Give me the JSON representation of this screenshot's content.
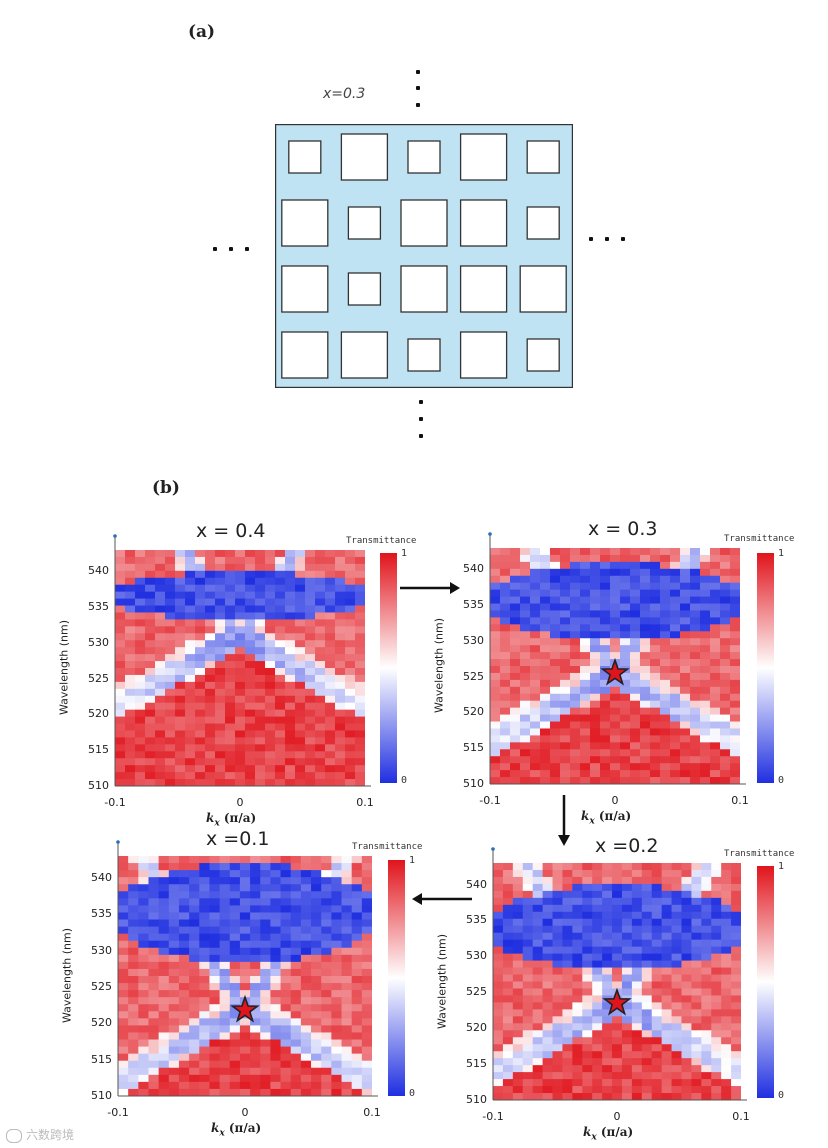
{
  "part_a": {
    "label": "(a)",
    "x_label": "x=0.3",
    "holes": [
      [
        0.3,
        0.7,
        0.3,
        0.7,
        0.3
      ],
      [
        0.7,
        0.3,
        0.7,
        0.7,
        0.3
      ],
      [
        0.7,
        0.3,
        0.7,
        0.7,
        0.7
      ],
      [
        0.7,
        0.7,
        0.3,
        0.7,
        0.3
      ]
    ]
  },
  "part_b": {
    "label": "(b)",
    "colorbar": {
      "title": "Transmittance",
      "max_label": "1",
      "min_label": "0",
      "colors": [
        "#1f2fe0",
        "#ffffff",
        "#e0141c"
      ]
    },
    "axes": {
      "ylabel": "Wavelength (nm)",
      "xlabel_k": "k",
      "xlabel_sub": "x",
      "xlabel_units": " (π/a)",
      "xticks": [
        "-0.1",
        "0",
        "0.1"
      ],
      "yticks": [
        "540",
        "535",
        "530",
        "525",
        "520",
        "515",
        "510"
      ]
    },
    "panels": [
      {
        "title": "x = 0.4",
        "star": false
      },
      {
        "title": "x = 0.3",
        "star": true
      },
      {
        "title": "x =0.1",
        "star": true
      },
      {
        "title": "x =0.2",
        "star": true
      }
    ]
  },
  "chart_data": [
    {
      "type": "heatmap",
      "title": "x = 0.4",
      "xlabel": "k_x (π/a)",
      "ylabel": "Wavelength (nm)",
      "xlim": [
        -0.1,
        0.1
      ],
      "ylim": [
        510,
        543
      ],
      "colorbar": [
        0,
        1
      ],
      "stopband_nm": [
        533,
        540
      ],
      "marker": null
    },
    {
      "type": "heatmap",
      "title": "x = 0.3",
      "xlabel": "k_x (π/a)",
      "ylabel": "Wavelength (nm)",
      "xlim": [
        -0.1,
        0.1
      ],
      "ylim": [
        510,
        543
      ],
      "colorbar": [
        0,
        1
      ],
      "stopband_nm": [
        530,
        541
      ],
      "marker": {
        "k": 0,
        "wavelength": 525.5
      }
    },
    {
      "type": "heatmap",
      "title": "x =0.2",
      "xlabel": "k_x (π/a)",
      "ylabel": "Wavelength (nm)",
      "xlim": [
        -0.1,
        0.1
      ],
      "ylim": [
        510,
        543
      ],
      "colorbar": [
        0,
        1
      ],
      "stopband_nm": [
        528,
        540
      ],
      "marker": {
        "k": 0,
        "wavelength": 523.5
      }
    },
    {
      "type": "heatmap",
      "title": "x =0.1",
      "xlabel": "k_x (π/a)",
      "ylabel": "Wavelength (nm)",
      "xlim": [
        -0.1,
        0.1
      ],
      "ylim": [
        510,
        543
      ],
      "colorbar": [
        0,
        1
      ],
      "stopband_nm": [
        528,
        542
      ],
      "marker": {
        "k": 0,
        "wavelength": 521.8
      }
    }
  ],
  "watermark": "六数跨境"
}
